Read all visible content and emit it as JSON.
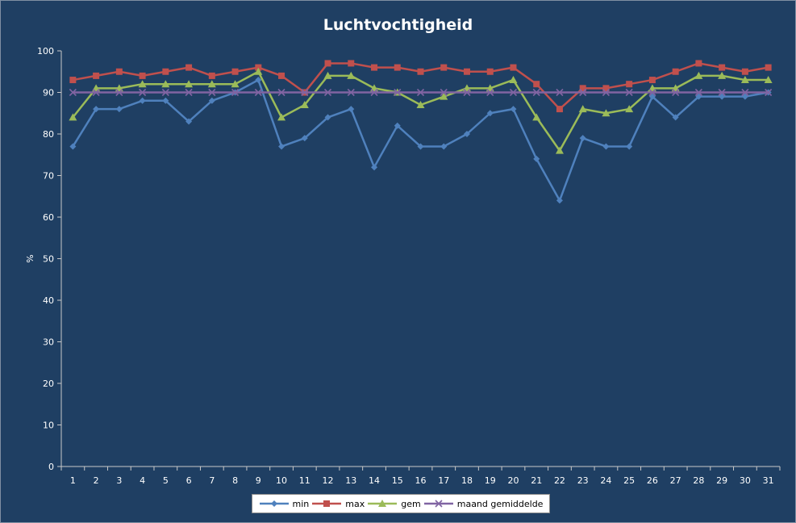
{
  "chart_data": {
    "type": "line",
    "title": "Luchtvochtigheid",
    "xlabel": "",
    "ylabel": "%",
    "ylim": [
      0,
      100
    ],
    "yticks": [
      0,
      10,
      20,
      30,
      40,
      50,
      60,
      70,
      80,
      90,
      100
    ],
    "x": [
      1,
      2,
      3,
      4,
      5,
      6,
      7,
      8,
      9,
      10,
      11,
      12,
      13,
      14,
      15,
      16,
      17,
      18,
      19,
      20,
      21,
      22,
      23,
      24,
      25,
      26,
      27,
      28,
      29,
      30,
      31
    ],
    "grid": false,
    "legend_position": "bottom",
    "series": [
      {
        "name": "min",
        "color": "#4f81bd",
        "marker": "diamond",
        "values": [
          77,
          86,
          86,
          88,
          88,
          83,
          88,
          90,
          93,
          77,
          79,
          84,
          86,
          72,
          82,
          77,
          77,
          80,
          85,
          86,
          74,
          64,
          79,
          77,
          77,
          89,
          84,
          89,
          89,
          89,
          90
        ]
      },
      {
        "name": "max",
        "color": "#c0504d",
        "marker": "square",
        "values": [
          93,
          94,
          95,
          94,
          95,
          96,
          94,
          95,
          96,
          94,
          90,
          97,
          97,
          96,
          96,
          95,
          96,
          95,
          95,
          96,
          92,
          86,
          91,
          91,
          92,
          93,
          95,
          97,
          96,
          95,
          96
        ]
      },
      {
        "name": "gem",
        "color": "#9bbb59",
        "marker": "triangle",
        "values": [
          84,
          91,
          91,
          92,
          92,
          92,
          92,
          92,
          95,
          84,
          87,
          94,
          94,
          91,
          90,
          87,
          89,
          91,
          91,
          93,
          84,
          76,
          86,
          85,
          86,
          91,
          91,
          94,
          94,
          93,
          93
        ]
      },
      {
        "name": "maand gemiddelde",
        "color": "#8064a2",
        "marker": "x",
        "values": [
          90,
          90,
          90,
          90,
          90,
          90,
          90,
          90,
          90,
          90,
          90,
          90,
          90,
          90,
          90,
          90,
          90,
          90,
          90,
          90,
          90,
          90,
          90,
          90,
          90,
          90,
          90,
          90,
          90,
          90,
          90
        ]
      }
    ]
  }
}
